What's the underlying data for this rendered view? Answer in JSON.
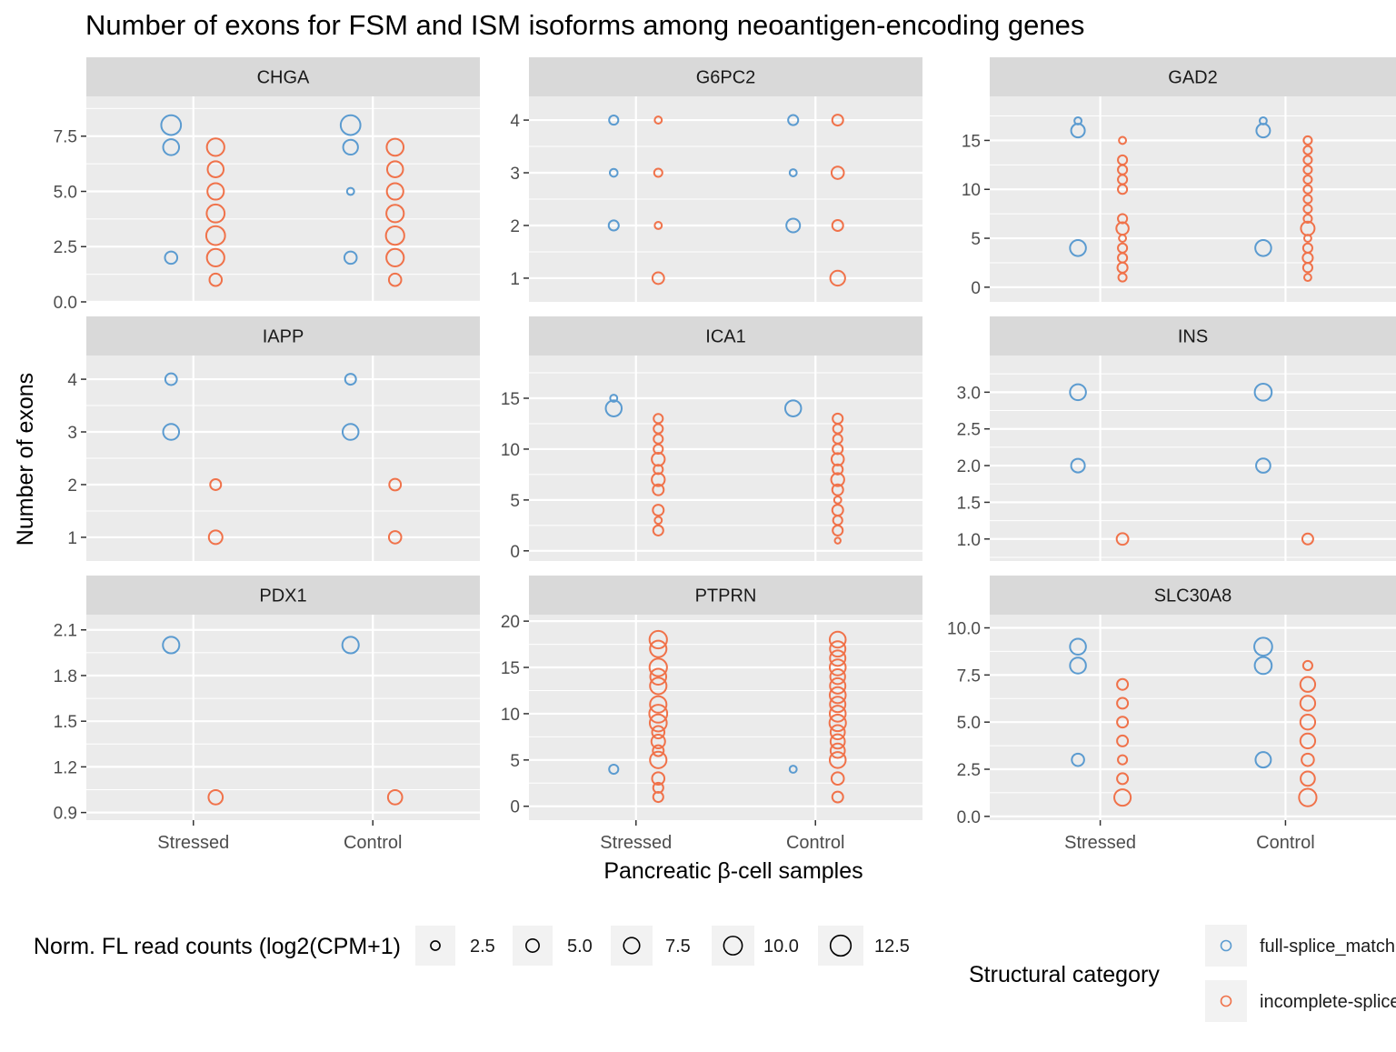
{
  "chart_data": {
    "type": "scatter",
    "title": "Number of exons for FSM and ISM isoforms among neoantigen-encoding genes",
    "xlabel": "Pancreatic β-cell samples",
    "ylabel": "Number of exons",
    "x_categories": [
      "Stressed",
      "Control"
    ],
    "grid": true,
    "colors": {
      "full-splice_match": "#5b9bd0",
      "incomplete-splice_match": "#f0724a"
    },
    "legend": {
      "placement": "bottom",
      "size_title": "Norm. FL read counts (log2(CPM+1)",
      "size_values": [
        2.5,
        5.0,
        7.5,
        10.0,
        12.5
      ],
      "size_labels": [
        "2.5",
        "5.0",
        "7.5",
        "10.0",
        "12.5"
      ],
      "color_title": "Structural category",
      "color_entries": [
        {
          "key": "full-splice_match",
          "label": "full-splice_match"
        },
        {
          "key": "incomplete-splice_match",
          "label": "incomplete-splice_match"
        }
      ]
    },
    "panels": [
      {
        "gene": "CHGA",
        "ylim": [
          0,
          9.3
        ],
        "yticks": [
          0,
          2.5,
          5,
          7.5
        ],
        "yticklabels": [
          "0.0",
          "2.5",
          "5.0",
          "7.5"
        ],
        "points": {
          "Stressed": {
            "full-splice_match": [
              [
                8,
                11.5
              ],
              [
                7,
                7.5
              ],
              [
                2,
                4.5
              ]
            ],
            "incomplete-splice_match": [
              [
                7,
                9.0
              ],
              [
                6,
                7.5
              ],
              [
                5,
                8.0
              ],
              [
                4,
                9.5
              ],
              [
                3,
                10.5
              ],
              [
                2,
                9.0
              ],
              [
                1,
                4.5
              ]
            ]
          },
          "Control": {
            "full-splice_match": [
              [
                8,
                11.5
              ],
              [
                7,
                6.5
              ],
              [
                5,
                1.5
              ],
              [
                2,
                4.5
              ]
            ],
            "incomplete-splice_match": [
              [
                7,
                8.5
              ],
              [
                6,
                7.5
              ],
              [
                5,
                8.0
              ],
              [
                4,
                9.0
              ],
              [
                3,
                10.0
              ],
              [
                2,
                9.0
              ],
              [
                1,
                4.5
              ]
            ]
          }
        }
      },
      {
        "gene": "G6PC2",
        "ylim": [
          0.55,
          4.45
        ],
        "yticks": [
          1,
          2,
          3,
          4
        ],
        "yticklabels": [
          "1",
          "2",
          "3",
          "4"
        ],
        "points": {
          "Stressed": {
            "full-splice_match": [
              [
                4,
                2.5
              ],
              [
                3,
                1.8
              ],
              [
                2,
                3.0
              ]
            ],
            "incomplete-splice_match": [
              [
                4,
                1.5
              ],
              [
                3,
                2.0
              ],
              [
                2,
                1.5
              ],
              [
                1,
                4.0
              ]
            ]
          },
          "Control": {
            "full-splice_match": [
              [
                4,
                3.0
              ],
              [
                3,
                1.5
              ],
              [
                2,
                5.5
              ]
            ],
            "incomplete-splice_match": [
              [
                4,
                3.5
              ],
              [
                3,
                4.5
              ],
              [
                2,
                3.5
              ],
              [
                1,
                6.5
              ]
            ]
          }
        }
      },
      {
        "gene": "GAD2",
        "ylim": [
          -1.5,
          19.5
        ],
        "yticks": [
          0,
          5,
          10,
          15
        ],
        "yticklabels": [
          "0",
          "5",
          "10",
          "15"
        ],
        "points": {
          "Stressed": {
            "full-splice_match": [
              [
                17,
                1.5
              ],
              [
                16,
                5.5
              ],
              [
                4,
                7.5
              ]
            ],
            "incomplete-splice_match": [
              [
                15,
                1.5
              ],
              [
                13,
                2.5
              ],
              [
                12,
                2.5
              ],
              [
                11,
                2.5
              ],
              [
                10,
                2.5
              ],
              [
                7,
                2.5
              ],
              [
                6,
                4.5
              ],
              [
                5,
                1.5
              ],
              [
                4,
                2.5
              ],
              [
                3,
                2.5
              ],
              [
                2,
                3.0
              ],
              [
                1,
                2.0
              ]
            ]
          },
          "Control": {
            "full-splice_match": [
              [
                17,
                1.5
              ],
              [
                16,
                5.5
              ],
              [
                4,
                7.5
              ]
            ],
            "incomplete-splice_match": [
              [
                15,
                2.0
              ],
              [
                14,
                2.0
              ],
              [
                13,
                2.0
              ],
              [
                12,
                2.0
              ],
              [
                11,
                2.0
              ],
              [
                10,
                2.0
              ],
              [
                9,
                2.0
              ],
              [
                8,
                2.0
              ],
              [
                7,
                2.0
              ],
              [
                6,
                5.5
              ],
              [
                5,
                1.5
              ],
              [
                4,
                2.5
              ],
              [
                3,
                3.0
              ],
              [
                2,
                2.5
              ],
              [
                1,
                1.5
              ]
            ]
          }
        }
      },
      {
        "gene": "IAPP",
        "ylim": [
          0.55,
          4.45
        ],
        "yticks": [
          1,
          2,
          3,
          4
        ],
        "yticklabels": [
          "1",
          "2",
          "3",
          "4"
        ],
        "points": {
          "Stressed": {
            "full-splice_match": [
              [
                4,
                4.0
              ],
              [
                3,
                7.5
              ]
            ],
            "incomplete-splice_match": [
              [
                2,
                3.5
              ],
              [
                1,
                5.5
              ]
            ]
          },
          "Control": {
            "full-splice_match": [
              [
                4,
                3.5
              ],
              [
                3,
                7.5
              ]
            ],
            "incomplete-splice_match": [
              [
                2,
                4.0
              ],
              [
                1,
                4.5
              ]
            ]
          }
        }
      },
      {
        "gene": "ICA1",
        "ylim": [
          -1.0,
          19.2
        ],
        "yticks": [
          0,
          5,
          10,
          15
        ],
        "yticklabels": [
          "0",
          "5",
          "10",
          "15"
        ],
        "points": {
          "Stressed": {
            "full-splice_match": [
              [
                15,
                1.5
              ],
              [
                14,
                7.5
              ]
            ],
            "incomplete-splice_match": [
              [
                13,
                2.5
              ],
              [
                12,
                2.5
              ],
              [
                11,
                2.5
              ],
              [
                10,
                2.5
              ],
              [
                9,
                5.0
              ],
              [
                8,
                2.5
              ],
              [
                7,
                5.0
              ],
              [
                6,
                3.5
              ],
              [
                4,
                3.5
              ],
              [
                3,
                1.5
              ],
              [
                2,
                3.0
              ]
            ]
          },
          "Control": {
            "full-splice_match": [
              [
                14,
                7.5
              ]
            ],
            "incomplete-splice_match": [
              [
                13,
                3.0
              ],
              [
                12,
                2.5
              ],
              [
                11,
                2.5
              ],
              [
                10,
                3.0
              ],
              [
                9,
                4.5
              ],
              [
                8,
                3.0
              ],
              [
                7,
                5.0
              ],
              [
                6,
                3.5
              ],
              [
                5,
                1.5
              ],
              [
                4,
                3.5
              ],
              [
                3,
                2.5
              ],
              [
                2,
                3.0
              ],
              [
                1,
                1.0
              ]
            ]
          }
        }
      },
      {
        "gene": "INS",
        "ylim": [
          0.7,
          3.5
        ],
        "yticks": [
          1.0,
          1.5,
          2.0,
          2.5,
          3.0
        ],
        "yticklabels": [
          "1.0",
          "1.5",
          "2.0",
          "2.5",
          "3.0"
        ],
        "points": {
          "Stressed": {
            "full-splice_match": [
              [
                3,
                7.5
              ],
              [
                2,
                5.5
              ]
            ],
            "incomplete-splice_match": [
              [
                1,
                4.0
              ]
            ]
          },
          "Control": {
            "full-splice_match": [
              [
                3,
                8.5
              ],
              [
                2,
                6.0
              ]
            ],
            "incomplete-splice_match": [
              [
                1,
                3.5
              ]
            ]
          }
        }
      },
      {
        "gene": "PDX1",
        "ylim": [
          0.85,
          2.2
        ],
        "yticks": [
          0.9,
          1.2,
          1.5,
          1.8,
          2.1
        ],
        "yticklabels": [
          "0.9",
          "1.2",
          "1.5",
          "1.8",
          "2.1"
        ],
        "points": {
          "Stressed": {
            "full-splice_match": [
              [
                2,
                8.0
              ]
            ],
            "incomplete-splice_match": [
              [
                1,
                6.0
              ]
            ]
          },
          "Control": {
            "full-splice_match": [
              [
                2,
                8.0
              ]
            ],
            "incomplete-splice_match": [
              [
                1,
                6.0
              ]
            ]
          }
        }
      },
      {
        "gene": "PTPRN",
        "ylim": [
          -1.5,
          20.7
        ],
        "yticks": [
          0,
          5,
          10,
          15,
          20
        ],
        "yticklabels": [
          "0",
          "5",
          "10",
          "15",
          "20"
        ],
        "points": {
          "Stressed": {
            "full-splice_match": [
              [
                4,
                2.5
              ]
            ],
            "incomplete-splice_match": [
              [
                18,
                9.0
              ],
              [
                17,
                8.0
              ],
              [
                15,
                9.0
              ],
              [
                14,
                7.5
              ],
              [
                13,
                8.0
              ],
              [
                11,
                8.0
              ],
              [
                10,
                9.5
              ],
              [
                9,
                8.5
              ],
              [
                8,
                4.5
              ],
              [
                7,
                5.5
              ],
              [
                6,
                3.5
              ],
              [
                5,
                8.0
              ],
              [
                3,
                4.5
              ],
              [
                2,
                3.0
              ],
              [
                1,
                3.0
              ]
            ]
          },
          "Control": {
            "full-splice_match": [
              [
                4,
                1.5
              ]
            ],
            "incomplete-splice_match": [
              [
                18,
                7.5
              ],
              [
                17,
                7.0
              ],
              [
                16,
                7.0
              ],
              [
                15,
                7.5
              ],
              [
                14,
                6.5
              ],
              [
                13,
                7.0
              ],
              [
                12,
                7.5
              ],
              [
                11,
                7.0
              ],
              [
                10,
                7.5
              ],
              [
                9,
                8.0
              ],
              [
                8,
                6.0
              ],
              [
                7,
                6.0
              ],
              [
                6,
                6.0
              ],
              [
                5,
                7.5
              ],
              [
                3,
                4.5
              ],
              [
                1,
                3.5
              ]
            ]
          }
        }
      },
      {
        "gene": "SLC30A8",
        "ylim": [
          -0.2,
          10.7
        ],
        "yticks": [
          0,
          2.5,
          5,
          7.5,
          10
        ],
        "yticklabels": [
          "0.0",
          "2.5",
          "5.0",
          "7.5",
          "10.0"
        ],
        "points": {
          "Stressed": {
            "full-splice_match": [
              [
                9,
                7.5
              ],
              [
                8,
                7.5
              ],
              [
                3,
                4.5
              ]
            ],
            "incomplete-splice_match": [
              [
                7,
                3.5
              ],
              [
                6,
                3.5
              ],
              [
                5,
                3.5
              ],
              [
                4,
                3.5
              ],
              [
                3,
                2.5
              ],
              [
                2,
                3.5
              ],
              [
                1,
                8.0
              ]
            ]
          },
          "Control": {
            "full-splice_match": [
              [
                9,
                9.5
              ],
              [
                8,
                8.5
              ],
              [
                3,
                7.0
              ]
            ],
            "incomplete-splice_match": [
              [
                8,
                2.5
              ],
              [
                7,
                6.5
              ],
              [
                6,
                6.5
              ],
              [
                5,
                6.5
              ],
              [
                4,
                6.5
              ],
              [
                3,
                4.5
              ],
              [
                2,
                6.0
              ],
              [
                1,
                9.0
              ]
            ]
          }
        }
      }
    ]
  }
}
